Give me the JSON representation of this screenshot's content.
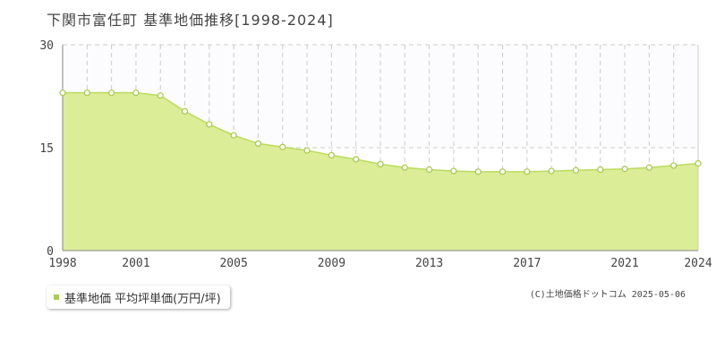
{
  "page": {
    "title": "下関市富任町 基準地価推移[1998-2024]",
    "copyright": "(C)土地価格ドットコム 2025-05-06"
  },
  "legend": {
    "label": "基準地価 平均坪単価(万円/坪)"
  },
  "colors": {
    "area_fill": "#dbed97",
    "line": "#b9dc5e",
    "marker_fill": "#ffffff",
    "marker_stroke": "#a5c84a",
    "grid": "#cccccc",
    "axis": "#888888",
    "legend_swatch": "#a8d046",
    "top_band": "#fcfbfd"
  },
  "chart_data": {
    "type": "area",
    "title": "",
    "xlabel": "",
    "ylabel": "",
    "x": [
      1998,
      1999,
      2000,
      2001,
      2002,
      2003,
      2004,
      2005,
      2006,
      2007,
      2008,
      2009,
      2010,
      2011,
      2012,
      2013,
      2014,
      2015,
      2016,
      2017,
      2018,
      2019,
      2020,
      2021,
      2022,
      2023,
      2024
    ],
    "series": [
      {
        "name": "基準地価 平均坪単価(万円/坪)",
        "values": [
          23.0,
          23.0,
          23.0,
          23.0,
          22.6,
          20.3,
          18.4,
          16.8,
          15.6,
          15.1,
          14.6,
          13.9,
          13.3,
          12.6,
          12.1,
          11.8,
          11.6,
          11.5,
          11.5,
          11.5,
          11.6,
          11.7,
          11.8,
          11.9,
          12.1,
          12.4,
          12.7
        ]
      }
    ],
    "xlim": [
      1998,
      2024
    ],
    "ylim": [
      0,
      30
    ],
    "x_tick_labels": [
      "1998",
      "2001",
      "2005",
      "2009",
      "2013",
      "2017",
      "2021",
      "2024"
    ],
    "y_tick_labels": [
      "0",
      "15",
      "30"
    ],
    "y_ticks": [
      0,
      15,
      30
    ],
    "grid": true,
    "legend_position": "bottom-left"
  }
}
